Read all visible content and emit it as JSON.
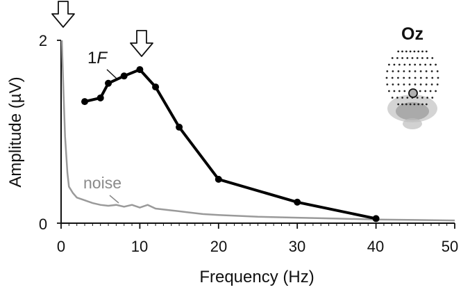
{
  "chart_data": {
    "type": "line",
    "xlabel": "Frequency (Hz)",
    "ylabel": "Amplitude (µV)",
    "xlim": [
      0,
      50
    ],
    "ylim": [
      0,
      2
    ],
    "xticks": [
      "0",
      "10",
      "20",
      "30",
      "40",
      "50"
    ],
    "yticks": [
      "0",
      "2"
    ],
    "grid": false,
    "series": [
      {
        "name": "1F",
        "color": "#000000",
        "markers": true,
        "x": [
          3,
          5,
          6,
          8,
          10,
          12,
          15,
          20,
          30,
          40
        ],
        "y": [
          1.33,
          1.37,
          1.53,
          1.61,
          1.68,
          1.49,
          1.05,
          0.48,
          0.23,
          0.05
        ]
      },
      {
        "name": "noise",
        "color": "#9a9a9a",
        "markers": false,
        "x": [
          0.1,
          0.3,
          0.5,
          0.8,
          1.0,
          1.5,
          2,
          3,
          4,
          5,
          6,
          7,
          8,
          9,
          10,
          11,
          12,
          14,
          16,
          18,
          20,
          25,
          30,
          35,
          40,
          45,
          50
        ],
        "y": [
          2.0,
          1.45,
          0.95,
          0.55,
          0.4,
          0.33,
          0.28,
          0.25,
          0.22,
          0.2,
          0.19,
          0.2,
          0.18,
          0.2,
          0.17,
          0.2,
          0.16,
          0.14,
          0.12,
          0.1,
          0.09,
          0.07,
          0.06,
          0.05,
          0.04,
          0.035,
          0.03
        ]
      }
    ],
    "annotations": {
      "arrows_at_x": [
        0,
        10
      ],
      "electrode": "Oz",
      "labels": {
        "signal_prefix": "1",
        "signal_italic": "F",
        "noise": "noise"
      }
    }
  }
}
